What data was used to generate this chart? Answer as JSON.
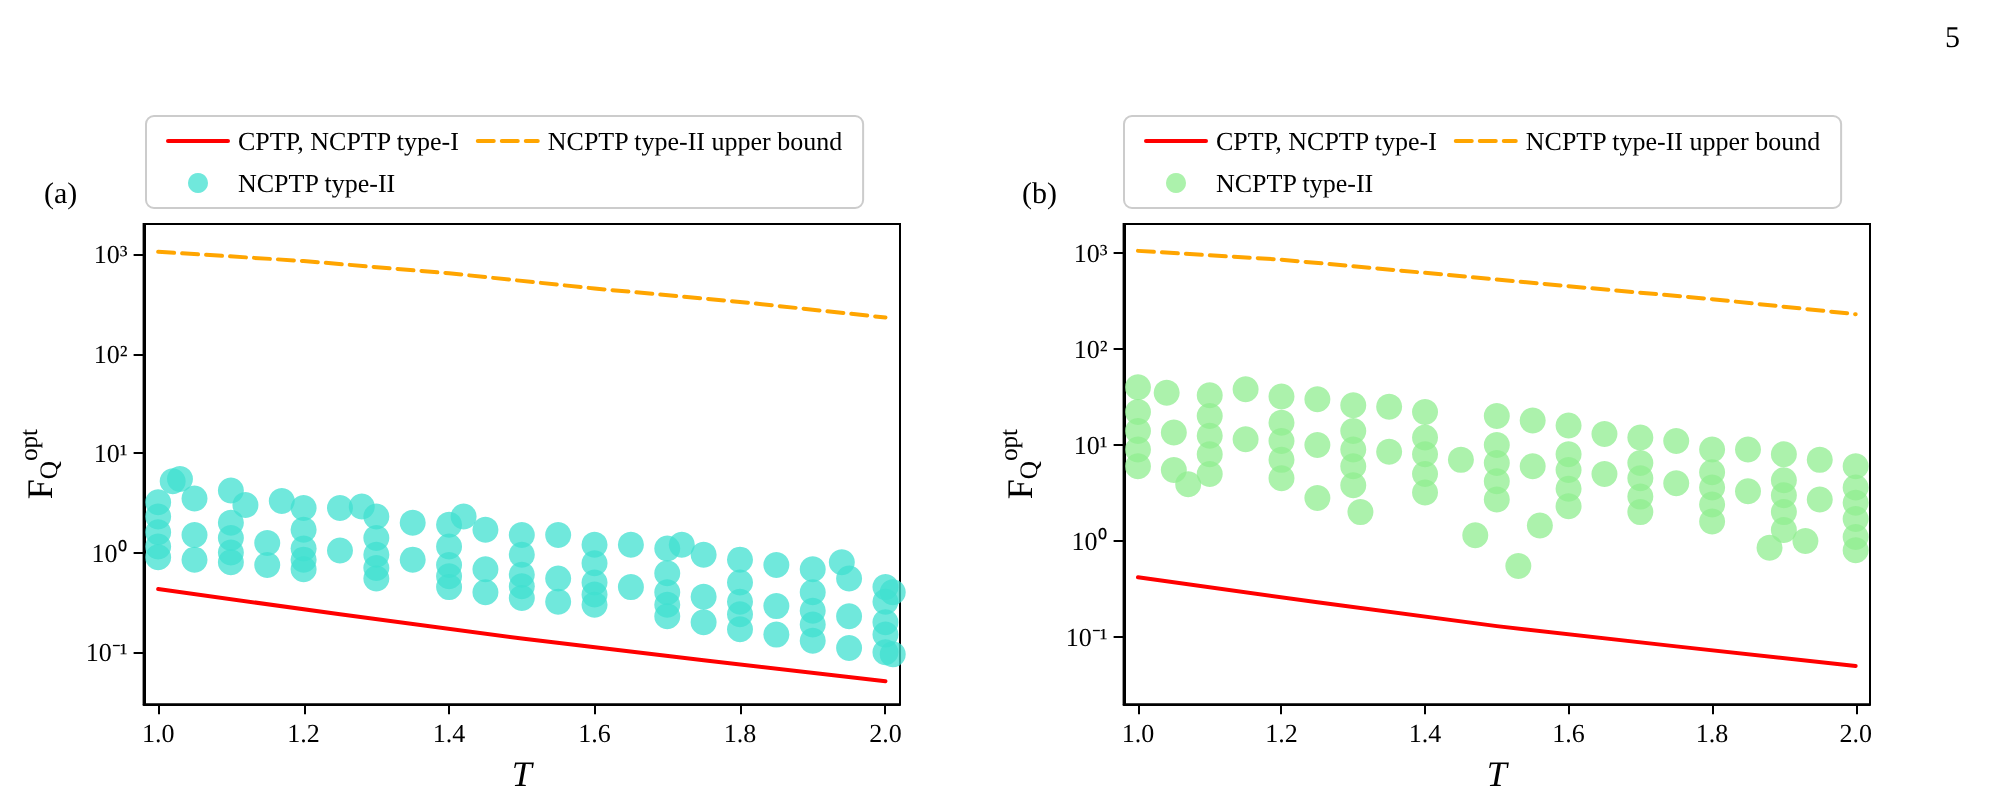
{
  "chart_data": [
    {
      "type": "line",
      "xlabel": "T",
      "ylabel": "F$_{Q}$$^{opt}$",
      "log": "y",
      "legend": "top",
      "annotations": [
        "(a)"
      ],
      "xlim": [
        0.98,
        2.02
      ],
      "xticks": [
        {
          "value": 1,
          "label": "1.0"
        },
        {
          "value": 1.2,
          "label": "1.2"
        },
        {
          "value": 1.4,
          "label": "1.4"
        },
        {
          "value": 1.6,
          "label": "1.6"
        },
        {
          "value": 1.8,
          "label": "1.8"
        },
        {
          "value": 2,
          "label": "2.0"
        }
      ],
      "ylim": [
        0.03,
        2000
      ],
      "yticks": [
        {
          "value": 0.1,
          "label": "10⁻¹"
        },
        {
          "value": 1,
          "label": "10⁰"
        },
        {
          "value": 10,
          "label": "10¹"
        },
        {
          "value": 100,
          "label": "10²"
        },
        {
          "value": 1000,
          "label": "10³"
        }
      ],
      "series": [
        {
          "name": "CPTP, NCPTP type-I",
          "color": "#ff0000",
          "line_style": "solid",
          "x": [
            1.0,
            1.25,
            1.5,
            1.75,
            2.0
          ],
          "values": [
            0.43,
            0.24,
            0.137,
            0.083,
            0.051
          ]
        },
        {
          "name": "NCPTP type-II upper bound",
          "color": "#ffa500",
          "line_style": "dashed",
          "x": [
            1.0,
            1.2,
            1.4,
            1.6,
            1.8,
            2.0
          ],
          "values": [
            1050,
            850,
            640,
            450,
            330,
            230
          ]
        },
        {
          "name": "NCPTP type-II",
          "type": "scatter",
          "color": "#40e0d0",
          "marker": "circle",
          "x": [
            1.0,
            1.02,
            1.03,
            1.05,
            1.1,
            1.12,
            1.17,
            1.2,
            1.25,
            1.28,
            1.3,
            1.35,
            1.4,
            1.42,
            1.45,
            1.5,
            1.55,
            1.6,
            1.65,
            1.7,
            1.72,
            1.75,
            1.8,
            1.85,
            1.9,
            1.94,
            1.95,
            2.0,
            2.01,
            1.0,
            1.1,
            1.2,
            1.3,
            1.4,
            1.5,
            1.6,
            1.7,
            1.8,
            1.9,
            2.0,
            1.0,
            1.05,
            1.1,
            1.15,
            1.2,
            1.25,
            1.3,
            1.35,
            1.4,
            1.45,
            1.5,
            1.55,
            1.6,
            1.65,
            1.7,
            1.75,
            1.8,
            1.85,
            1.9,
            1.95,
            2.0,
            1.0,
            1.1,
            1.2,
            1.3,
            1.4,
            1.5,
            1.6,
            1.7,
            1.8,
            1.9,
            2.0,
            1.0,
            1.05,
            1.1,
            1.15,
            1.2,
            1.3,
            1.4,
            1.45,
            1.5,
            1.55,
            1.6,
            1.7,
            1.75,
            1.8,
            1.85,
            1.9,
            1.95,
            2.0,
            2.01
          ],
          "values": [
            3.2,
            5.2,
            5.5,
            3.5,
            4.2,
            3.0,
            3.3,
            2.8,
            2.8,
            2.9,
            2.3,
            2.0,
            1.9,
            2.3,
            1.7,
            1.5,
            1.5,
            1.2,
            1.2,
            1.1,
            1.2,
            0.95,
            0.85,
            0.75,
            0.68,
            0.8,
            0.55,
            0.45,
            0.4,
            2.3,
            2.0,
            1.7,
            1.4,
            1.15,
            0.95,
            0.78,
            0.62,
            0.5,
            0.4,
            0.32,
            1.6,
            1.5,
            1.4,
            1.25,
            1.1,
            1.05,
            0.95,
            0.85,
            0.75,
            0.68,
            0.6,
            0.55,
            0.5,
            0.45,
            0.4,
            0.36,
            0.32,
            0.29,
            0.26,
            0.23,
            0.2,
            1.15,
            1.0,
            0.85,
            0.7,
            0.58,
            0.46,
            0.38,
            0.3,
            0.24,
            0.19,
            0.15,
            0.9,
            0.85,
            0.8,
            0.75,
            0.68,
            0.55,
            0.45,
            0.4,
            0.35,
            0.32,
            0.3,
            0.23,
            0.2,
            0.17,
            0.15,
            0.13,
            0.11,
            0.1,
            0.095
          ]
        }
      ]
    },
    {
      "type": "line",
      "xlabel": "T",
      "ylabel": "F$_{Q}$$^{opt}$",
      "log": "y",
      "legend": "top",
      "annotations": [
        "(b)",
        "5"
      ],
      "xlim": [
        0.98,
        2.02
      ],
      "xticks": [
        {
          "value": 1,
          "label": "1.0"
        },
        {
          "value": 1.2,
          "label": "1.2"
        },
        {
          "value": 1.4,
          "label": "1.4"
        },
        {
          "value": 1.6,
          "label": "1.6"
        },
        {
          "value": 1.8,
          "label": "1.8"
        },
        {
          "value": 2,
          "label": "2.0"
        }
      ],
      "ylim": [
        0.02,
        2000
      ],
      "yticks": [
        {
          "value": 0.1,
          "label": "10⁻¹"
        },
        {
          "value": 1,
          "label": "10⁰"
        },
        {
          "value": 10,
          "label": "10¹"
        },
        {
          "value": 100,
          "label": "10²"
        },
        {
          "value": 1000,
          "label": "10³"
        }
      ],
      "series": [
        {
          "name": "CPTP, NCPTP type-I",
          "color": "#ff0000",
          "line_style": "solid",
          "x": [
            1.0,
            1.25,
            1.5,
            1.75,
            2.0
          ],
          "values": [
            0.42,
            0.23,
            0.13,
            0.08,
            0.05
          ]
        },
        {
          "name": "NCPTP type-II upper bound",
          "color": "#ffa500",
          "line_style": "dashed",
          "x": [
            1.0,
            1.2,
            1.4,
            1.6,
            1.8,
            2.0
          ],
          "values": [
            1050,
            850,
            620,
            450,
            330,
            230
          ]
        },
        {
          "name": "NCPTP type-II",
          "type": "scatter",
          "color": "#90ee90",
          "marker": "circle",
          "x": [
            1.0,
            1.04,
            1.1,
            1.15,
            1.2,
            1.25,
            1.3,
            1.35,
            1.4,
            1.5,
            1.55,
            1.6,
            1.65,
            1.7,
            1.75,
            1.8,
            1.85,
            1.9,
            1.95,
            2.0,
            1.0,
            1.1,
            1.2,
            1.3,
            1.4,
            1.5,
            1.6,
            1.7,
            1.8,
            1.9,
            2.0,
            1.0,
            1.05,
            1.1,
            1.15,
            1.2,
            1.25,
            1.3,
            1.35,
            1.4,
            1.45,
            1.5,
            1.55,
            1.6,
            1.65,
            1.7,
            1.75,
            1.8,
            1.85,
            1.9,
            1.95,
            2.0,
            1.0,
            1.1,
            1.2,
            1.3,
            1.4,
            1.5,
            1.6,
            1.7,
            1.8,
            1.9,
            2.0,
            1.0,
            1.05,
            1.1,
            1.2,
            1.3,
            1.4,
            1.5,
            1.6,
            1.7,
            1.8,
            1.9,
            2.0,
            1.07,
            1.25,
            1.31,
            1.47,
            1.53,
            1.56,
            1.88,
            1.93,
            2.0
          ],
          "values": [
            40,
            35,
            33,
            38,
            32,
            30,
            26,
            25,
            22,
            20,
            18,
            16,
            13,
            12,
            11,
            9,
            9,
            8,
            7,
            6,
            22,
            20,
            17,
            14,
            12,
            10,
            8,
            6.5,
            5.2,
            4.3,
            3.6,
            14,
            13.5,
            12.5,
            11.5,
            11,
            10,
            9,
            8.5,
            8,
            7,
            6.5,
            6,
            5.5,
            5,
            4.5,
            4,
            3.6,
            3.3,
            3,
            2.7,
            2.5,
            9,
            8,
            7,
            6,
            5,
            4.2,
            3.5,
            2.9,
            2.4,
            2,
            1.7,
            6,
            5.5,
            5,
            4.5,
            3.8,
            3.2,
            2.7,
            2.3,
            2,
            1.6,
            1.3,
            1.1,
            3.9,
            2.8,
            2.0,
            1.15,
            0.55,
            1.45,
            0.85,
            1.0,
            0.8
          ]
        }
      ]
    }
  ]
}
